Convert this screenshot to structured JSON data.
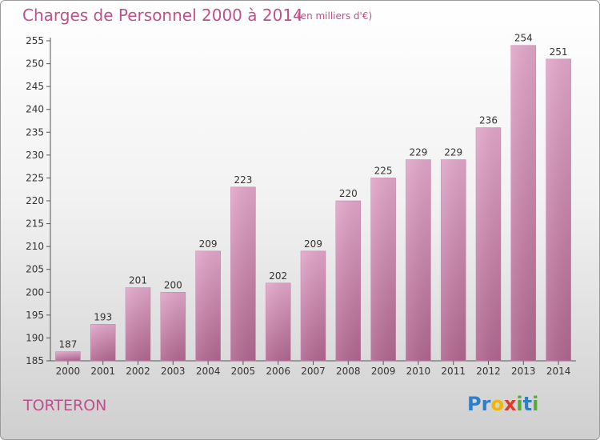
{
  "title": "Charges de Personnel 2000 à 2014",
  "unit_label": "(en milliers d'€)",
  "commune": "TORTERON",
  "brand": {
    "letters": [
      {
        "ch": "P",
        "color": "#2f7fc7"
      },
      {
        "ch": "r",
        "color": "#2f7fc7"
      },
      {
        "ch": "o",
        "color": "#f0b800"
      },
      {
        "ch": "x",
        "color": "#e03a2b"
      },
      {
        "ch": "i",
        "color": "#58a83a"
      },
      {
        "ch": "t",
        "color": "#2f7fc7"
      },
      {
        "ch": "i",
        "color": "#58a83a"
      }
    ]
  },
  "chart_data": {
    "type": "bar",
    "title": "Charges de Personnel 2000 à 2014",
    "subtitle": "(en milliers d'€)",
    "categories": [
      "2000",
      "2001",
      "2002",
      "2003",
      "2004",
      "2005",
      "2006",
      "2007",
      "2008",
      "2009",
      "2010",
      "2011",
      "2012",
      "2013",
      "2014"
    ],
    "values": [
      187,
      193,
      201,
      200,
      209,
      223,
      202,
      209,
      220,
      225,
      229,
      229,
      236,
      254,
      251
    ],
    "ylim": [
      185,
      255
    ],
    "yticks": [
      185,
      190,
      195,
      200,
      205,
      210,
      215,
      220,
      225,
      230,
      235,
      240,
      245,
      250,
      255
    ],
    "grid": false,
    "bar_color": "#d98fb8"
  }
}
